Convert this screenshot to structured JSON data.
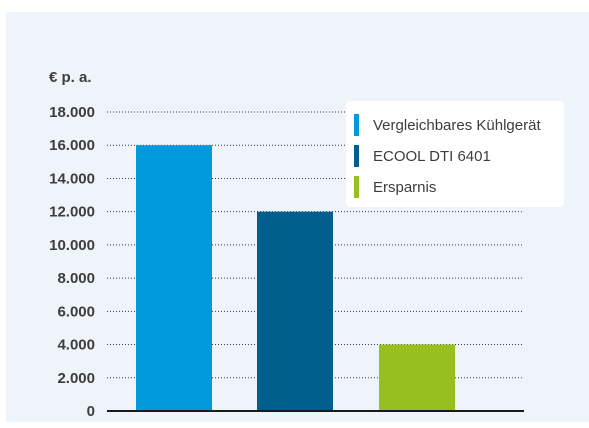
{
  "chart_data": {
    "type": "bar",
    "ylabel": "€ p. a.",
    "categories": [
      "Vergleichbares Kühlgerät",
      "ECOOL DTI 6401",
      "Ersparnis"
    ],
    "values": [
      16000,
      12000,
      4000
    ],
    "colors": [
      "#0099db",
      "#005f8c",
      "#97bf1f"
    ],
    "ylim": [
      0,
      18000
    ],
    "yticks": [
      0,
      2000,
      4000,
      6000,
      8000,
      10000,
      12000,
      14000,
      16000,
      18000
    ],
    "ytick_labels": [
      "0",
      "2.000",
      "4.000",
      "6.000",
      "8.000",
      "10.000",
      "12.000",
      "14.000",
      "16.000",
      "18.000"
    ],
    "grid": "horizontal dotted",
    "legend": {
      "placement": "top-right",
      "entries": [
        {
          "label": "Vergleichbares Kühlgerät",
          "color": "#0099db"
        },
        {
          "label": "ECOOL DTI 6401",
          "color": "#005f8c"
        },
        {
          "label": "Ersparnis",
          "color": "#97bf1f"
        }
      ]
    }
  }
}
